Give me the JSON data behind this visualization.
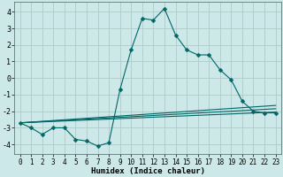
{
  "xlabel": "Humidex (Indice chaleur)",
  "background_color": "#cce8e8",
  "grid_color": "#b0c8c8",
  "line_color": "#006666",
  "xlim": [
    -0.5,
    23.5
  ],
  "ylim": [
    -4.6,
    4.6
  ],
  "xticks": [
    0,
    1,
    2,
    3,
    4,
    5,
    6,
    7,
    8,
    9,
    10,
    11,
    12,
    13,
    14,
    15,
    16,
    17,
    18,
    19,
    20,
    21,
    22,
    23
  ],
  "yticks": [
    -4,
    -3,
    -2,
    -1,
    0,
    1,
    2,
    3,
    4
  ],
  "main_series": {
    "x": [
      0,
      1,
      2,
      3,
      4,
      5,
      6,
      7,
      8,
      9,
      10,
      11,
      12,
      13,
      14,
      15,
      16,
      17,
      18,
      19,
      20,
      21,
      22,
      23
    ],
    "y": [
      -2.7,
      -3.0,
      -3.4,
      -3.0,
      -3.0,
      -3.7,
      -3.8,
      -4.1,
      -3.9,
      -0.7,
      1.7,
      3.6,
      3.5,
      4.2,
      2.6,
      1.7,
      1.4,
      1.4,
      0.5,
      -0.1,
      -1.4,
      -2.0,
      -2.1,
      -2.1
    ]
  },
  "trend_lines": [
    {
      "x": [
        0,
        23
      ],
      "y": [
        -2.7,
        -2.05
      ]
    },
    {
      "x": [
        0,
        23
      ],
      "y": [
        -2.7,
        -1.85
      ]
    },
    {
      "x": [
        0,
        23
      ],
      "y": [
        -2.7,
        -1.65
      ]
    }
  ],
  "tick_fontsize": 5.5,
  "xlabel_fontsize": 6.5
}
